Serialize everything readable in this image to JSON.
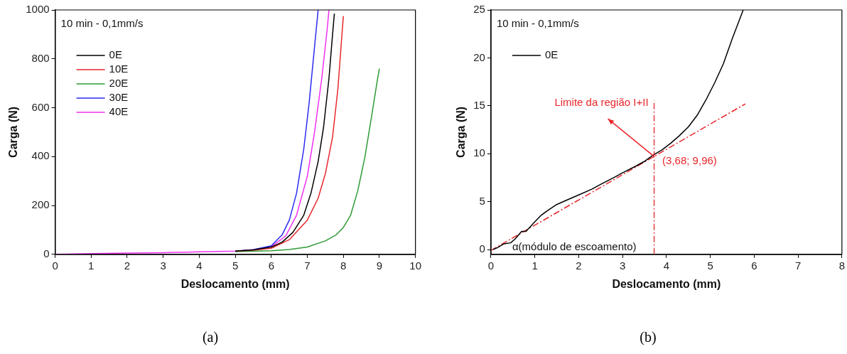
{
  "chart_data": [
    {
      "type": "line",
      "title": "(a)",
      "xlabel": "Deslocamento (mm)",
      "ylabel": "Carga (N)",
      "xlim": [
        0,
        10
      ],
      "xticks": [
        0,
        1,
        2,
        3,
        4,
        5,
        6,
        7,
        8,
        9,
        10
      ],
      "ylim": [
        0,
        1000
      ],
      "yticks": [
        0,
        200,
        400,
        600,
        800,
        1000
      ],
      "grid": false,
      "legend": "top left",
      "marker": "none",
      "line_style": "solid",
      "annotations": [
        "10 min - 0,1mm/s"
      ],
      "series": [
        {
          "name": "0E",
          "color": "#000000",
          "x": [
            5,
            5.5,
            6,
            6.3,
            6.6,
            6.9,
            7.1,
            7.3,
            7.45,
            7.6,
            7.7,
            7.75
          ],
          "values": [
            13,
            18,
            30,
            50,
            90,
            160,
            250,
            380,
            520,
            720,
            900,
            985
          ]
        },
        {
          "name": "10E",
          "color": "#e8262b",
          "x": [
            5,
            5.5,
            6,
            6.5,
            7,
            7.3,
            7.5,
            7.7,
            7.85,
            7.95,
            8.0
          ],
          "values": [
            13,
            17,
            25,
            60,
            140,
            230,
            330,
            480,
            680,
            880,
            975
          ]
        },
        {
          "name": "20E",
          "color": "#2e9a35",
          "x": [
            5,
            6,
            6.5,
            7,
            7.5,
            7.8,
            8,
            8.2,
            8.4,
            8.6,
            8.8,
            8.95,
            9.0
          ],
          "values": [
            11,
            15,
            20,
            30,
            55,
            80,
            110,
            160,
            260,
            400,
            580,
            720,
            760
          ]
        },
        {
          "name": "30E",
          "color": "#2b2bf0",
          "x": [
            5,
            5.5,
            6,
            6.3,
            6.5,
            6.7,
            6.9,
            7.05,
            7.2,
            7.3
          ],
          "values": [
            13,
            19,
            35,
            80,
            140,
            250,
            430,
            620,
            850,
            1000
          ]
        },
        {
          "name": "40E",
          "color": "#f030f0",
          "x": [
            0,
            1,
            2,
            3,
            4,
            5,
            5.5,
            6,
            6.4,
            6.7,
            7,
            7.2,
            7.4,
            7.55,
            7.6
          ],
          "values": [
            0,
            3,
            5,
            7,
            10,
            13,
            19,
            32,
            75,
            160,
            320,
            500,
            720,
            920,
            1000
          ]
        }
      ]
    },
    {
      "type": "line",
      "title": "(b)",
      "xlabel": "Deslocamento (mm)",
      "ylabel": "Carga (N)",
      "xlim": [
        0,
        8
      ],
      "xticks": [
        0,
        1,
        2,
        3,
        4,
        5,
        6,
        7,
        8
      ],
      "ylim": [
        -0.5,
        25
      ],
      "yticks": [
        0,
        5,
        10,
        15,
        20,
        25
      ],
      "grid": false,
      "legend": "top left",
      "marker": "none",
      "line_style": "solid",
      "annotations": [
        "10 min - 0,1mm/s",
        {
          "text": "(3,68; 9,96)",
          "x": 3.68,
          "y": 9.96
        },
        "α(módulo de escoamento)"
      ],
      "ref_lines": [
        {
          "axis": "x",
          "value": 3.72,
          "label": "Limite da região I+II",
          "color": "#e8262b",
          "line_style": "dashed"
        }
      ],
      "series": [
        {
          "name": "0E",
          "color": "#000000",
          "x": [
            0.05,
            0.15,
            0.3,
            0.45,
            0.55,
            0.7,
            0.8,
            0.9,
            1,
            1.15,
            1.3,
            1.5,
            1.7,
            2,
            2.3,
            2.5,
            2.8,
            3,
            3.3,
            3.5,
            3.68,
            3.9,
            4.1,
            4.3,
            4.5,
            4.7,
            4.9,
            5.1,
            5.3,
            5.5,
            5.65,
            5.75
          ],
          "values": [
            0,
            0.2,
            0.6,
            0.7,
            1.1,
            1.9,
            1.9,
            2.4,
            2.9,
            3.6,
            4.1,
            4.7,
            5.1,
            5.7,
            6.3,
            6.8,
            7.5,
            8,
            8.7,
            9.2,
            9.8,
            10.4,
            11.1,
            11.9,
            12.8,
            14,
            15.6,
            17.4,
            19.4,
            22,
            23.8,
            25
          ]
        },
        {
          "type": "line",
          "color": "#e8262b",
          "line_style": "dashed",
          "x": [
            0,
            5.8
          ],
          "values": [
            -0.1,
            15.2
          ]
        }
      ]
    }
  ]
}
